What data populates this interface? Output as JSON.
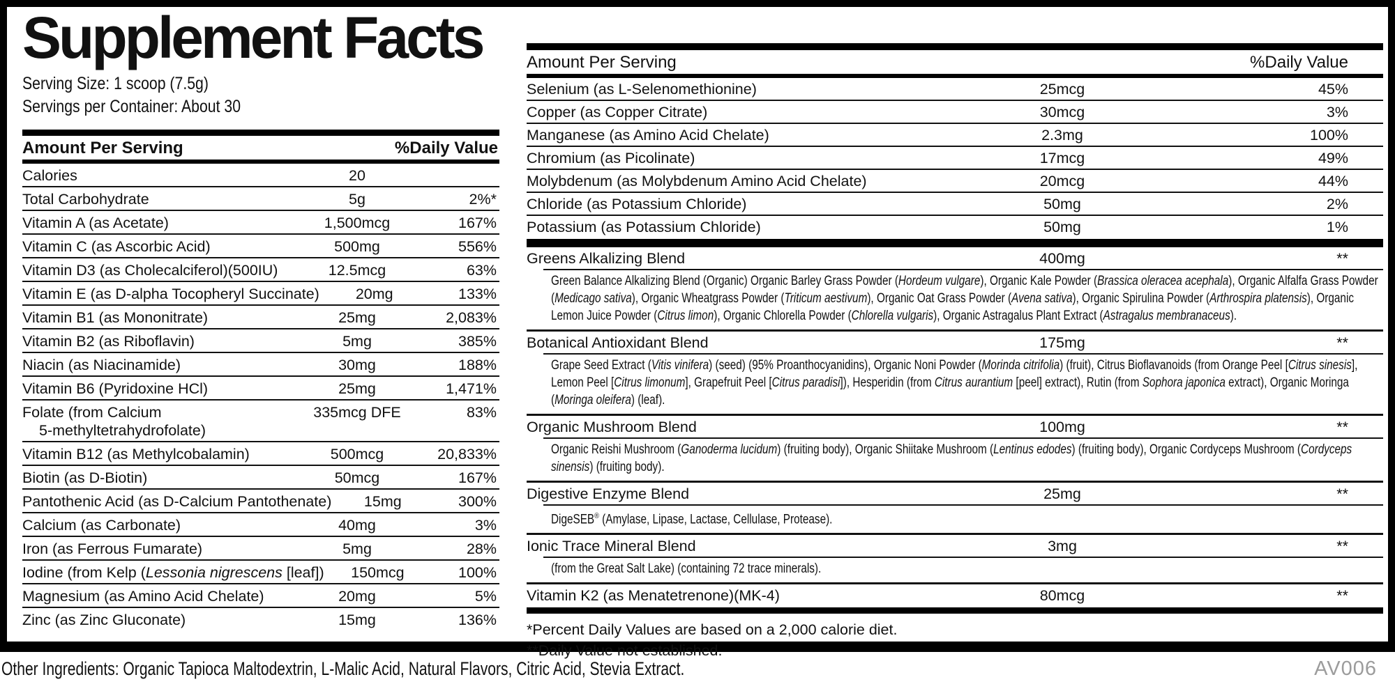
{
  "label": {
    "title": "Supplement Facts",
    "serving_size": "Serving Size: 1 scoop (7.5g)",
    "servings_per_container": "Servings per Container: About 30",
    "header_left": {
      "amount": "Amount Per Serving",
      "dv": "%Daily Value"
    },
    "header_right": {
      "amount": "Amount Per Serving",
      "dv": "%Daily Value"
    },
    "left_rows": [
      {
        "name": "Calories",
        "amount": "20",
        "dv": ""
      },
      {
        "name": "Total Carbohydrate",
        "amount": "5g",
        "dv": "2%*"
      },
      {
        "name": "Vitamin A (as Acetate)",
        "amount": "1,500mcg",
        "dv": "167%"
      },
      {
        "name": "Vitamin C (as Ascorbic Acid)",
        "amount": "500mg",
        "dv": "556%"
      },
      {
        "name": "Vitamin D3 (as Cholecalciferol)(500IU)",
        "amount": "12.5mcg",
        "dv": "63%"
      },
      {
        "name": "Vitamin E (as D-alpha Tocopheryl Succinate)",
        "amount": "20mg",
        "dv": "133%"
      },
      {
        "name": "Vitamin B1 (as Mononitrate)",
        "amount": "25mg",
        "dv": "2,083%"
      },
      {
        "name": "Vitamin B2 (as Riboflavin)",
        "amount": "5mg",
        "dv": "385%"
      },
      {
        "name": "Niacin (as Niacinamide)",
        "amount": "30mg",
        "dv": "188%"
      },
      {
        "name": "Vitamin B6 (Pyridoxine HCl)",
        "amount": "25mg",
        "dv": "1,471%"
      },
      {
        "name": [
          "Folate (from Calcium",
          {
            "ind": "5-methyltetrahydrofolate)"
          }
        ],
        "amount": "335mcg DFE",
        "dv": "83%"
      },
      {
        "name": "Vitamin B12 (as Methylcobalamin)",
        "amount": "500mcg",
        "dv": "20,833%"
      },
      {
        "name": "Biotin (as D-Biotin)",
        "amount": "50mcg",
        "dv": "167%"
      },
      {
        "name": "Pantothenic Acid (as D-Calcium Pantothenate)",
        "amount": "15mg",
        "dv": "300%"
      },
      {
        "name": "Calcium (as Carbonate)",
        "amount": "40mg",
        "dv": "3%"
      },
      {
        "name": "Iron (as Ferrous Fumarate)",
        "amount": "5mg",
        "dv": "28%"
      },
      {
        "name": [
          "Iodine (from Kelp (",
          {
            "i": "Lessonia nigrescens"
          },
          " [leaf])"
        ],
        "amount": "150mcg",
        "dv": "100%"
      },
      {
        "name": "Magnesium (as Amino Acid Chelate)",
        "amount": "20mg",
        "dv": "5%"
      },
      {
        "name": "Zinc (as Zinc Gluconate)",
        "amount": "15mg",
        "dv": "136%"
      }
    ],
    "right_rows": [
      {
        "name": "Selenium (as L-Selenomethionine)",
        "amount": "25mcg",
        "dv": "45%"
      },
      {
        "name": "Copper (as Copper Citrate)",
        "amount": "30mcg",
        "dv": "3%"
      },
      {
        "name": "Manganese (as Amino Acid Chelate)",
        "amount": "2.3mg",
        "dv": "100%"
      },
      {
        "name": "Chromium (as Picolinate)",
        "amount": "17mcg",
        "dv": "49%"
      },
      {
        "name": "Molybdenum (as Molybdenum Amino Acid Chelate)",
        "amount": "20mcg",
        "dv": "44%"
      },
      {
        "name": "Chloride (as Potassium Chloride)",
        "amount": "50mg",
        "dv": "2%"
      },
      {
        "name": "Potassium (as Potassium Chloride)",
        "amount": "50mg",
        "dv": "1%"
      }
    ],
    "blends": [
      {
        "name": "Greens Alkalizing Blend",
        "amount": "400mg",
        "dv": "**",
        "desc": [
          "Green Balance Alkalizing Blend (Organic) Organic Barley Grass Powder (",
          {
            "i": "Hordeum vulgare"
          },
          "), Organic Kale Powder (",
          {
            "i": "Brassica oleracea acephala"
          },
          "), Organic Alfalfa Grass Powder (",
          {
            "i": "Medicago sativa"
          },
          "), Organic Wheatgrass Powder (",
          {
            "i": "Triticum aestivum"
          },
          "), Organic Oat Grass Powder (",
          {
            "i": "Avena sativa"
          },
          "), Organic Spirulina Powder (",
          {
            "i": "Arthrospira platensis"
          },
          "), Organic Lemon Juice Powder (",
          {
            "i": "Citrus limon"
          },
          "), Organic Chlorella Powder (",
          {
            "i": "Chlorella vulgaris"
          },
          "), Organic Astragalus Plant Extract (",
          {
            "i": "Astragalus membranaceus"
          },
          ")."
        ]
      },
      {
        "name": "Botanical Antioxidant Blend",
        "amount": "175mg",
        "dv": "**",
        "desc": [
          "Grape Seed Extract (",
          {
            "i": "Vitis vinifera"
          },
          ") (seed) (95% Proanthocyanidins), Organic Noni Powder (",
          {
            "i": "Morinda citrifolia"
          },
          ") (fruit), Citrus Bioflavanoids (from Orange Peel [",
          {
            "i": "Citrus sinesis"
          },
          "], Lemon Peel [",
          {
            "i": "Citrus limonum"
          },
          "], Grapefruit Peel [",
          {
            "i": "Citrus paradisi"
          },
          "]), Hesperidin (from ",
          {
            "i": "Citrus aurantium"
          },
          " [peel] extract), Rutin (from ",
          {
            "i": "Sophora japonica"
          },
          " extract), Organic Moringa (",
          {
            "i": "Moringa oleifera"
          },
          ") (leaf)."
        ]
      },
      {
        "name": "Organic Mushroom Blend",
        "amount": "100mg",
        "dv": "**",
        "desc": [
          "Organic Reishi Mushroom (",
          {
            "i": "Ganoderma lucidum"
          },
          ") (fruiting body), Organic Shiitake Mushroom (",
          {
            "i": "Lentinus edodes"
          },
          ") (fruiting body), Organic Cordyceps Mushroom (",
          {
            "i": "Cordyceps sinensis"
          },
          ") (fruiting body)."
        ]
      },
      {
        "name": "Digestive Enzyme Blend",
        "amount": "25mg",
        "dv": "**",
        "desc": [
          "DigeSEB",
          {
            "sup": "®"
          },
          " (Amylase, Lipase, Lactase, Cellulase, Protease)."
        ]
      },
      {
        "name": "Ionic Trace Mineral Blend",
        "amount": "3mg",
        "dv": "**",
        "desc": [
          "(from the Great Salt Lake) (containing 72 trace minerals)."
        ]
      },
      {
        "name": "Vitamin K2 (as Menatetrenone)(MK-4)",
        "amount": "80mcg",
        "dv": "**"
      }
    ],
    "footnotes": [
      "*Percent Daily Values are based on a 2,000 calorie diet.",
      "**Daily Value not established."
    ],
    "other_ingredients": "Other Ingredients: Organic Tapioca Maltodextrin, L-Malic Acid, Natural Flavors, Citric Acid, Stevia Extract.",
    "code": "AV006"
  }
}
